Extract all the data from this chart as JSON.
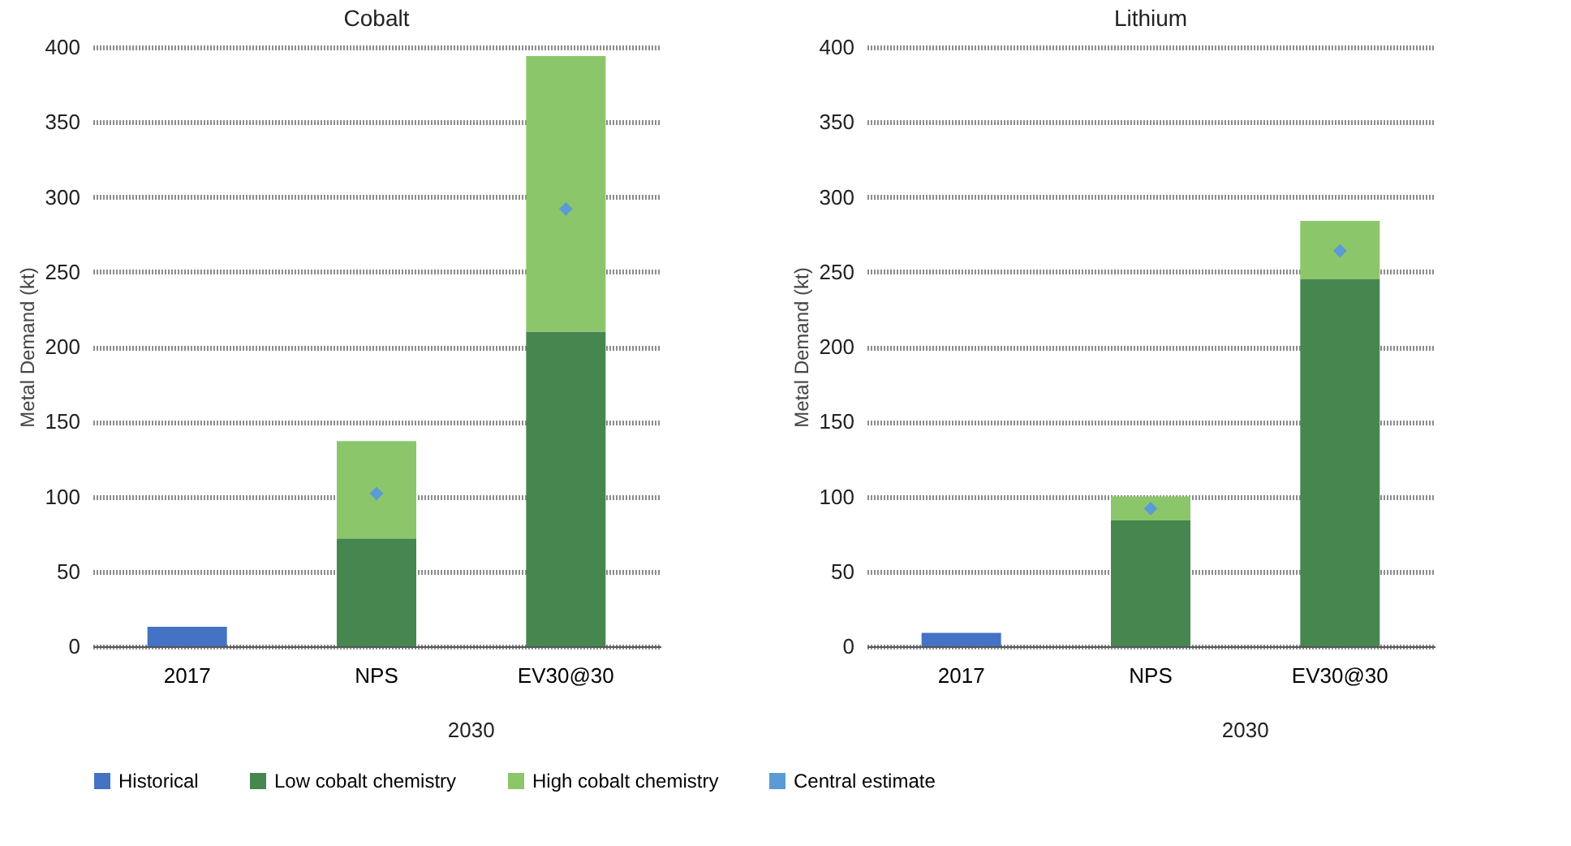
{
  "chart_data": [
    {
      "type": "bar",
      "title": "Cobalt",
      "ylabel": "Metal Demand (kt)",
      "categories": [
        "2017",
        "NPS",
        "EV30@30"
      ],
      "stacked": true,
      "ylim": [
        0,
        400
      ],
      "yticks": [
        0,
        50,
        100,
        150,
        200,
        250,
        300,
        350,
        400
      ],
      "grid": "y",
      "legend": "bottom",
      "annotations": [
        "2030"
      ],
      "series": [
        {
          "name": "Historical",
          "color": "#4472c4",
          "values": [
            13,
            null,
            null
          ]
        },
        {
          "name": "Low cobalt chemistry",
          "color": "#468750",
          "values": [
            null,
            72,
            210
          ]
        },
        {
          "name": "High cobalt chemistry",
          "color": "#8cc66a",
          "values": [
            null,
            65,
            184
          ]
        },
        {
          "name": "Central estimate",
          "type": "scatter",
          "marker": "diamond",
          "color": "#5b9bd5",
          "x": [
            "NPS",
            "EV30@30"
          ],
          "values": [
            102,
            292
          ]
        }
      ]
    },
    {
      "type": "bar",
      "title": "Lithium",
      "ylabel": "Metal Demand (kt)",
      "categories": [
        "2017",
        "NPS",
        "EV30@30"
      ],
      "stacked": true,
      "ylim": [
        0,
        400
      ],
      "yticks": [
        0,
        50,
        100,
        150,
        200,
        250,
        300,
        350,
        400
      ],
      "grid": "y",
      "legend": "bottom",
      "annotations": [
        "2030"
      ],
      "series": [
        {
          "name": "Historical",
          "color": "#4472c4",
          "values": [
            9,
            null,
            null
          ]
        },
        {
          "name": "Low cobalt chemistry",
          "color": "#468750",
          "values": [
            null,
            84,
            245
          ]
        },
        {
          "name": "High cobalt chemistry",
          "color": "#8cc66a",
          "values": [
            null,
            16,
            39
          ]
        },
        {
          "name": "Central estimate",
          "type": "scatter",
          "marker": "diamond",
          "color": "#5b9bd5",
          "x": [
            "NPS",
            "EV30@30"
          ],
          "values": [
            92,
            264
          ]
        }
      ]
    }
  ]
}
